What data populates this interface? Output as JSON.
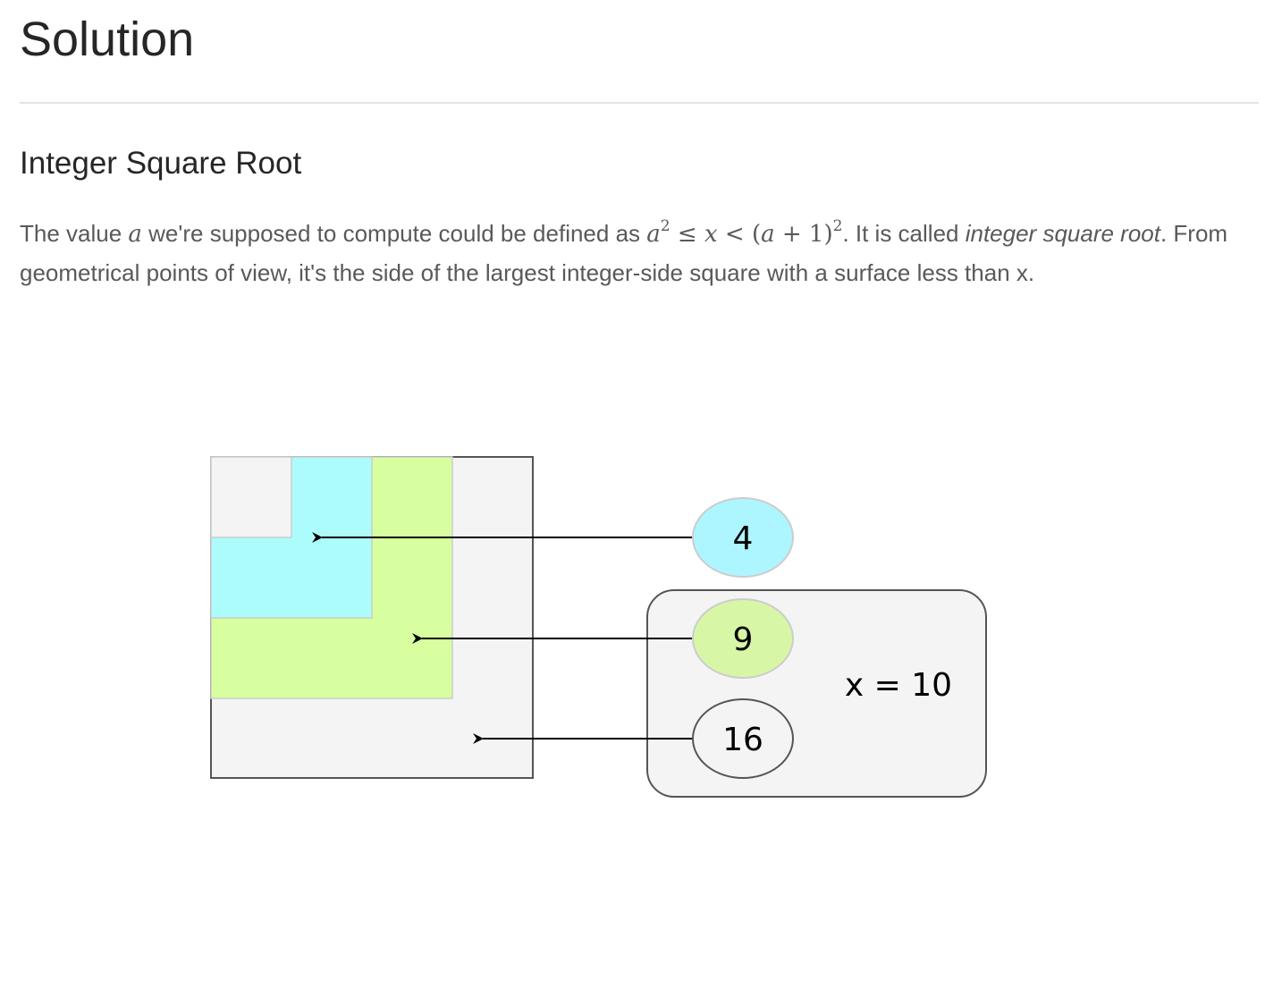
{
  "page": {
    "title": "Solution"
  },
  "section": {
    "heading": "Integer Square Root",
    "paragraph": {
      "text_1": "The value ",
      "math_var_a": "a",
      "text_2": " we're supposed to compute could be defined as ",
      "math_ineq": {
        "a": "a",
        "exp_1": "2",
        "leq": " ≤ ",
        "x": "x",
        "lt": " < ",
        "open": "(",
        "a2": "a",
        "plus_one": " + 1)",
        "exp_2": "2"
      },
      "text_3": ". It is called ",
      "em_1": "integer square root",
      "text_4": ". From geometrical points of view, it's the side of the largest integer-side square with a surface less than x."
    }
  },
  "figure": {
    "labels": {
      "four": "4",
      "nine": "9",
      "sixteen": "16",
      "x_value": "x = 10"
    },
    "colors": {
      "outer_square": "#f4f4f4",
      "green_square": "#d7ff9f",
      "cyan_square": "#adfcfc",
      "small_square": "#f4f4f4",
      "border": "#555555",
      "ellipse_4": "#adf6ff",
      "ellipse_9": "#d7f7a7",
      "ellipse_16": "#f4f4f4",
      "group_box": "#f4f4f4"
    }
  }
}
